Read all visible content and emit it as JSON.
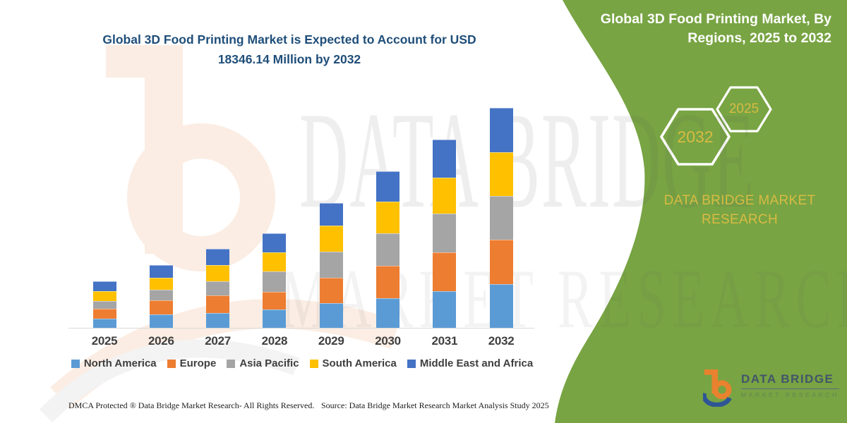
{
  "title": {
    "line1": "Global 3D Food Printing Market is Expected to Account for USD",
    "line2": "18346.14 Million by 2032",
    "color": "#1F4E79"
  },
  "side_panel": {
    "background_color": "#78A443",
    "title_line1": "Global 3D Food Printing Market, By",
    "title_line2": "Regions, 2025 to 2032",
    "hexagon_badges": [
      {
        "label": "2032"
      },
      {
        "label": "2025"
      }
    ],
    "badge_text_color": "#D8BB43",
    "brand_line1": "DATA BRIDGE MARKET",
    "brand_line2": "RESEARCH",
    "brand_color": "#D8BB43"
  },
  "logo": {
    "name": "DATA BRIDGE",
    "subname": "MARKET RESEARCH",
    "mark_orange": "#E8822F",
    "mark_blue": "#2E5596",
    "text_color": "#44546A"
  },
  "watermark": {
    "line1": "DATA BRIDGE",
    "line2": "MARKET RESEARCH"
  },
  "footer": {
    "dmca": "DMCA Protected ® Data Bridge Market Research-  All Rights Reserved.",
    "source": "Source: Data Bridge Market Research  Market Analysis Study 2025"
  },
  "chart_data": {
    "type": "bar",
    "stacked": true,
    "unit": "USD Million",
    "title": "Global 3D Food Printing Market is Expected to Account for USD 18346.14 Million by 2032",
    "categories": [
      "2025",
      "2026",
      "2027",
      "2028",
      "2029",
      "2030",
      "2031",
      "2032"
    ],
    "series": [
      {
        "name": "North America",
        "color": "#5B9BD5",
        "values": [
          770,
          1120,
          1230,
          1530,
          2060,
          2470,
          3060,
          3646.14
        ]
      },
      {
        "name": "Europe",
        "color": "#ED7D31",
        "values": [
          820,
          1180,
          1470,
          1470,
          2120,
          2700,
          3230,
          3700
        ]
      },
      {
        "name": "Asia Pacific",
        "color": "#A5A5A5",
        "values": [
          650,
          880,
          1180,
          1710,
          2180,
          2700,
          3230,
          3650
        ]
      },
      {
        "name": "South America",
        "color": "#FFC000",
        "values": [
          820,
          1000,
          1350,
          1590,
          2180,
          2650,
          3000,
          3650
        ]
      },
      {
        "name": "Middle East and Africa",
        "color": "#4472C4",
        "values": [
          820,
          1060,
          1350,
          1590,
          1880,
          2530,
          3180,
          3700
        ]
      }
    ],
    "totals": [
      3880,
      5240,
      6580,
      7890,
      10420,
      13050,
      15700,
      18346.14
    ],
    "xlabel": "",
    "ylabel": "",
    "ylim": [
      0,
      19000
    ],
    "grid": false,
    "y_axis_visible": false,
    "legend_position": "bottom",
    "axis_label_color": "#404040",
    "axis_line_color": "#D9D9D9"
  }
}
